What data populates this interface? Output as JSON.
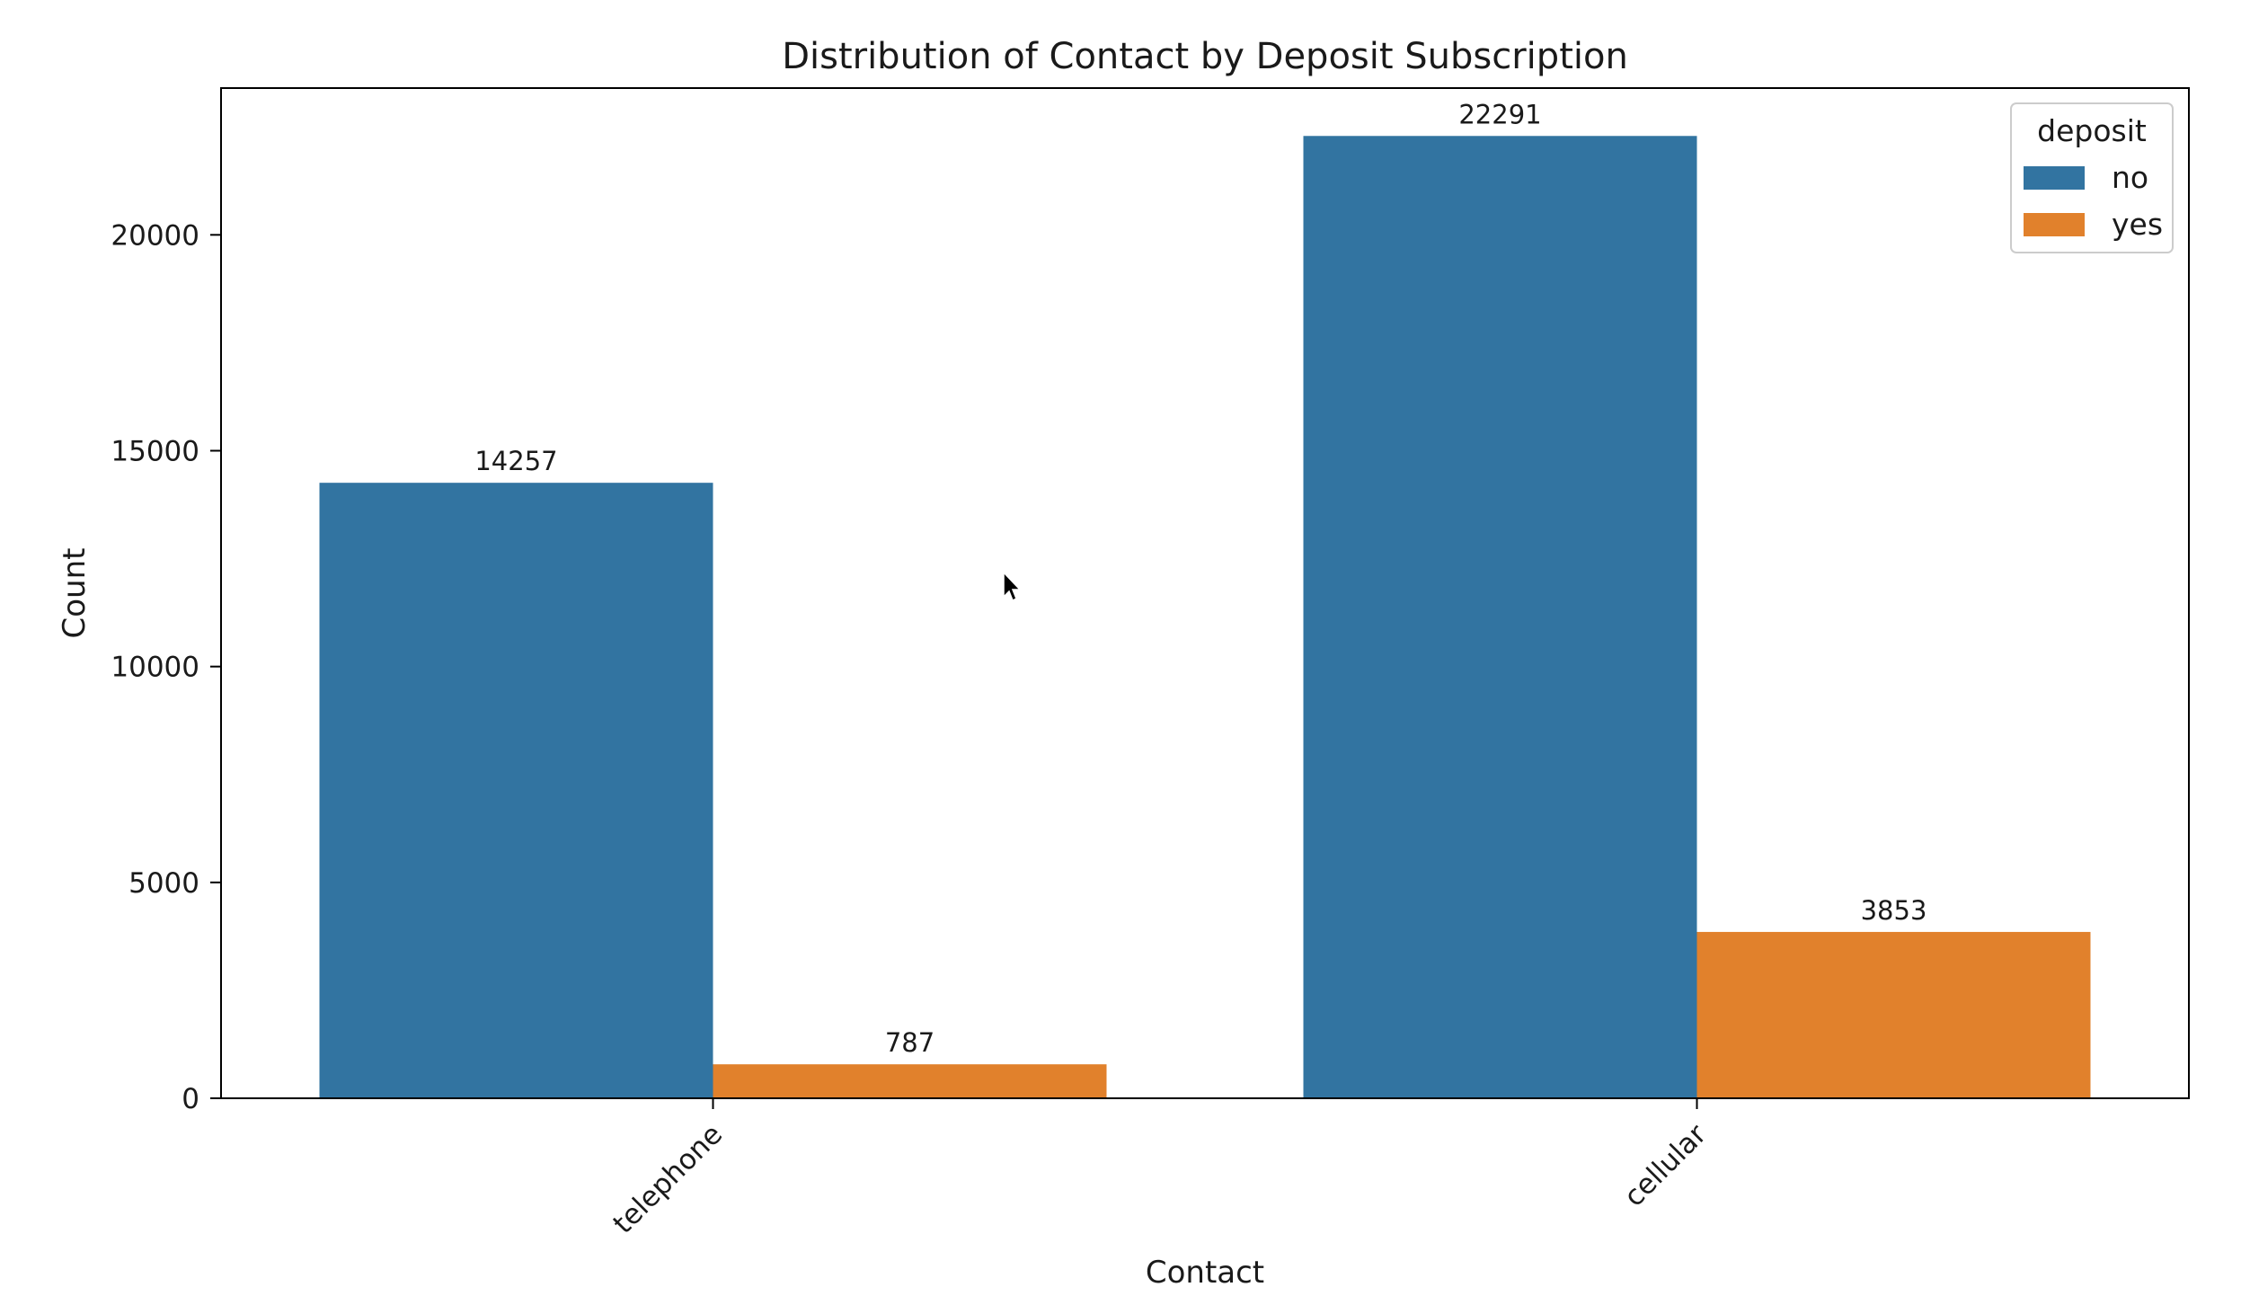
{
  "chart_data": {
    "type": "bar",
    "title": "Distribution of Contact by Deposit Subscription",
    "xlabel": "Contact",
    "ylabel": "Count",
    "categories": [
      "telephone",
      "cellular"
    ],
    "series": [
      {
        "name": "no",
        "color": "#3274a1",
        "values": [
          14257,
          22291
        ]
      },
      {
        "name": "yes",
        "color": "#e1812c",
        "values": [
          787,
          3853
        ]
      }
    ],
    "ylim": [
      0,
      23400
    ],
    "yticks": [
      0,
      5000,
      10000,
      15000,
      20000
    ],
    "legend": {
      "title": "deposit",
      "placement": "top-right"
    },
    "grid": false
  }
}
